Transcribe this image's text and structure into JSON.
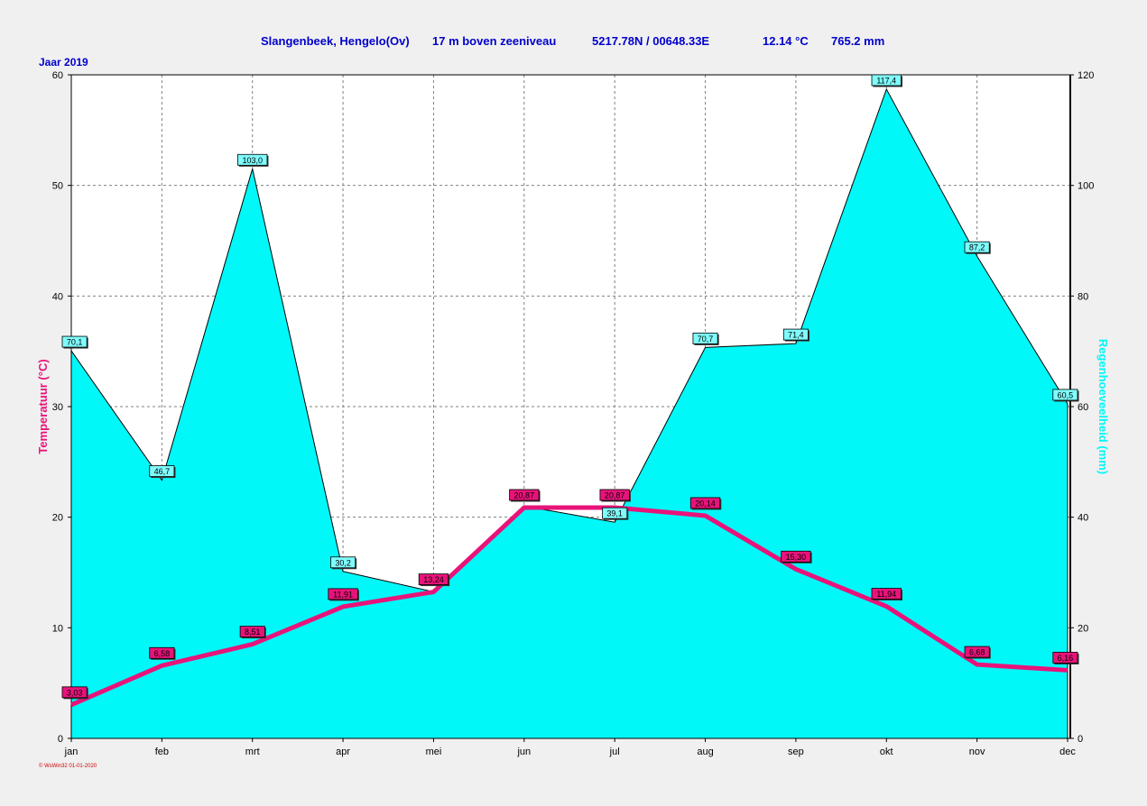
{
  "header": {
    "station": "Slangenbeek, Hengelo(Ov)",
    "elevation": "17 m boven zeeniveau",
    "coordinates": "5217.78N / 00648.33E",
    "mean_temperature": "12.14 °C",
    "total_rain": "765.2 mm",
    "year_label": "Jaar  2019"
  },
  "footer": {
    "watermark": "© WsWin32  01-01-2020"
  },
  "colors": {
    "title": "#0000cc",
    "temperature": "#e8137a",
    "rain_fill": "#00f8f8",
    "rain_label_bg": "#7ffcfc",
    "temp_label_bg": "#e8137a",
    "grid": "#808080"
  },
  "chart_data": {
    "type": "line",
    "categories": [
      "jan",
      "feb",
      "mrt",
      "apr",
      "mei",
      "jun",
      "jul",
      "aug",
      "sep",
      "okt",
      "nov",
      "dec"
    ],
    "series": [
      {
        "name": "Temperatuur",
        "axis": "left",
        "style": "line",
        "values": [
          3.03,
          6.58,
          8.51,
          11.91,
          13.24,
          20.87,
          20.87,
          20.14,
          15.3,
          11.94,
          6.68,
          6.16
        ],
        "labels": [
          "3,03",
          "6,58",
          "8,51",
          "11,91",
          "13,24",
          "20,87",
          "20,87",
          "20,14",
          "15,30",
          "11,94",
          "6,68",
          "6,16"
        ]
      },
      {
        "name": "Regenhoeveelheid",
        "axis": "right",
        "style": "area",
        "values": [
          70.1,
          46.7,
          103.0,
          30.2,
          26.5,
          42.0,
          39.1,
          70.7,
          71.4,
          117.4,
          87.2,
          60.5
        ],
        "labels": [
          "70,1",
          "46,7",
          "103,0",
          "30,2",
          "",
          "",
          "39,1",
          "70,7",
          "71,4",
          "117,4",
          "87,2",
          "60,5"
        ]
      }
    ],
    "y_left": {
      "label": "Temperatuur  (°C)",
      "lim": [
        0,
        60
      ],
      "ticks": [
        "0",
        "10",
        "20",
        "30",
        "40",
        "50",
        "60"
      ]
    },
    "y_right": {
      "label": "Regenhoeveelheid  (mm)",
      "lim": [
        0,
        120
      ],
      "ticks": [
        "0",
        "20",
        "40",
        "60",
        "80",
        "100",
        "120"
      ]
    },
    "grid": true
  }
}
